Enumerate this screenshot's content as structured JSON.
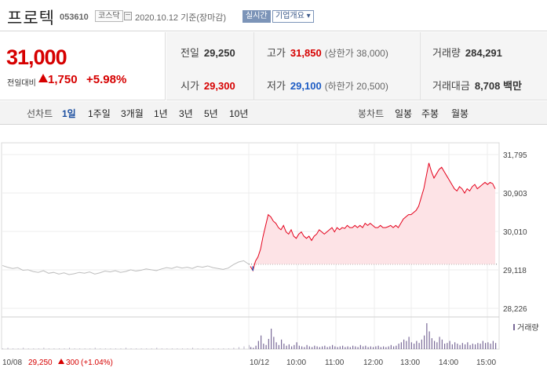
{
  "header": {
    "name": "프로텍",
    "code": "053610",
    "market": "코스닥",
    "date_note": "2020.10.12  기준(장마감)",
    "realtime_btn": "실시간",
    "corp_btn": "기업개요 ▾"
  },
  "price": {
    "current": "31,000",
    "change_label": "전일대비",
    "change": "1,750",
    "change_pct": "+5.98%",
    "color_up": "#d60000",
    "color_down": "#1d5cc4"
  },
  "stats": {
    "prev_close": {
      "label": "전일",
      "value": "29,250"
    },
    "open": {
      "label": "시가",
      "value": "29,300"
    },
    "high": {
      "label": "고가",
      "value": "31,850",
      "sub": "(상한가 38,000)"
    },
    "low": {
      "label": "저가",
      "value": "29,100",
      "sub": "(하한가 20,500)"
    },
    "volume": {
      "label": "거래량",
      "value": "284,291"
    },
    "amount": {
      "label": "거래대금",
      "value": "8,708 백만"
    }
  },
  "tabs": {
    "line_label": "선차트",
    "line_items": [
      "1일",
      "1주일",
      "3개월",
      "1년",
      "3년",
      "5년",
      "10년"
    ],
    "active": "1일",
    "candle_label": "봉차트",
    "candle_items": [
      "일봉",
      "주봉",
      "월봉"
    ]
  },
  "chart_data": {
    "type": "line",
    "yticks": [
      "31,795",
      "30,903",
      "30,010",
      "29,118",
      "28,226"
    ],
    "ylim": [
      28226,
      31795
    ],
    "prev_close_line": 29250,
    "volume_label": "거래량",
    "x_labels": [
      "10/08",
      "10/12",
      "10:00",
      "11:00",
      "12:00",
      "13:00",
      "14:00",
      "15:00"
    ],
    "prev_day_summary": {
      "date": "10/08",
      "price": "29,250",
      "change": "300",
      "pct": "(+1.04%)"
    },
    "prev_day_series": [
      29220,
      29180,
      29150,
      29170,
      29110,
      29120,
      29080,
      29060,
      29100,
      29040,
      29060,
      29020,
      29050,
      29010,
      29030,
      29060,
      29040,
      29070,
      29020,
      29050,
      29090,
      29070,
      29100,
      29060,
      29080,
      29120,
      29090,
      29110,
      29140,
      29120,
      29100,
      29140,
      29170,
      29150,
      29190,
      29160,
      29180,
      29150,
      29200,
      29180,
      29210,
      29170,
      29150,
      29130,
      29160,
      29240,
      29300,
      29330,
      29250
    ],
    "today_series": [
      29200,
      29100,
      29320,
      29420,
      29600,
      29900,
      30150,
      30400,
      30350,
      30250,
      30200,
      30100,
      30050,
      30150,
      30000,
      29950,
      30050,
      29900,
      29850,
      29950,
      30000,
      29900,
      29850,
      29900,
      29800,
      29900,
      29950,
      30050,
      30000,
      29950,
      30000,
      30050,
      30100,
      30000,
      30100,
      30050,
      30100,
      30080,
      30150,
      30100,
      30100,
      30150,
      30100,
      30150,
      30100,
      30200,
      30150,
      30200,
      30150,
      30100,
      30100,
      30150,
      30100,
      30100,
      30120,
      30150,
      30100,
      30150,
      30100,
      30200,
      30300,
      30350,
      30400,
      30400,
      30450,
      30500,
      30600,
      30800,
      31000,
      31300,
      31600,
      31400,
      31250,
      31350,
      31450,
      31500,
      31400,
      31300,
      31200,
      31100,
      31000,
      30950,
      31050,
      31000,
      30900,
      31000,
      30950,
      31050,
      31100,
      31000,
      31050,
      31100,
      31150,
      31100,
      31150,
      31120,
      31000
    ],
    "prev_day_volume": [
      1,
      2,
      1,
      1,
      2,
      1,
      1,
      1,
      2,
      1,
      1,
      1,
      1,
      2,
      1,
      1,
      1,
      1,
      2,
      1,
      1,
      1,
      1,
      1,
      2,
      1,
      1,
      1,
      1,
      1,
      2,
      1,
      1,
      1,
      1,
      1,
      1,
      2,
      1,
      1,
      1,
      1,
      1,
      1,
      1,
      2,
      3,
      4,
      6
    ],
    "today_volume": [
      3,
      2,
      5,
      12,
      20,
      8,
      6,
      15,
      30,
      18,
      10,
      6,
      14,
      8,
      5,
      7,
      4,
      6,
      10,
      5,
      4,
      3,
      6,
      4,
      3,
      5,
      4,
      3,
      4,
      5,
      3,
      4,
      6,
      4,
      3,
      4,
      5,
      3,
      4,
      3,
      5,
      4,
      3,
      6,
      4,
      5,
      3,
      4,
      3,
      4,
      5,
      3,
      4,
      3,
      4,
      6,
      4,
      5,
      8,
      10,
      14,
      12,
      18,
      10,
      8,
      12,
      9,
      14,
      20,
      38,
      26,
      16,
      12,
      10,
      18,
      14,
      8,
      9,
      12,
      7,
      10,
      8,
      6,
      9,
      7,
      10,
      6,
      8,
      7,
      9,
      8,
      12,
      9,
      10,
      8,
      12,
      9
    ]
  }
}
